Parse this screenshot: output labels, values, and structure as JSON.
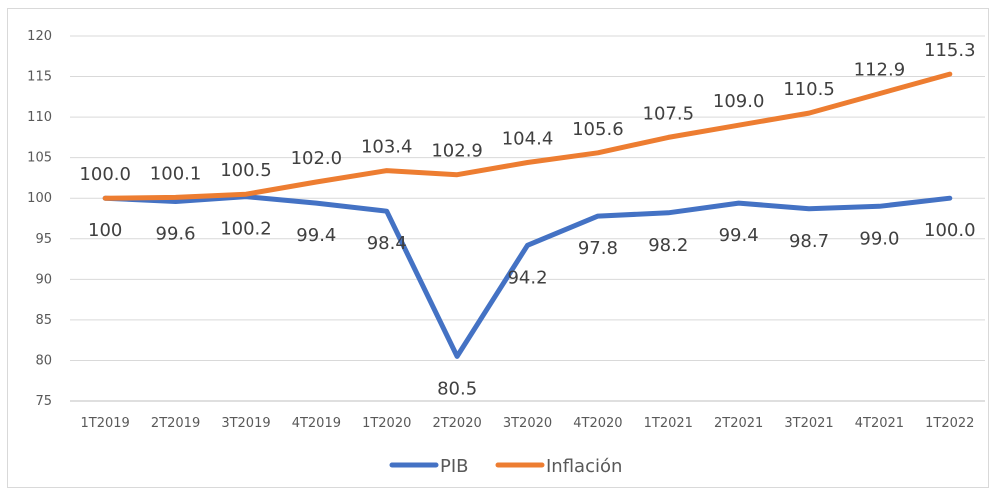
{
  "chart_data": {
    "type": "line",
    "title": "",
    "xlabel": "",
    "ylabel": "",
    "categories": [
      "1T2019",
      "2T2019",
      "3T2019",
      "4T2019",
      "1T2020",
      "2T2020",
      "3T2020",
      "4T2020",
      "1T2021",
      "2T2021",
      "3T2021",
      "4T2021",
      "1T2022"
    ],
    "ylim": [
      75,
      120
    ],
    "yticks": [
      75,
      80,
      85,
      90,
      95,
      100,
      105,
      110,
      115,
      120
    ],
    "grid": true,
    "legend_position": "bottom",
    "series": [
      {
        "name": "PIB",
        "color": "#4472c4",
        "values": [
          100,
          99.6,
          100.2,
          99.4,
          98.4,
          80.5,
          94.2,
          97.8,
          98.2,
          99.4,
          98.7,
          99.0,
          100.0
        ],
        "labels": [
          "100",
          "99.6",
          "100.2",
          "99.4",
          "98.4",
          "80.5",
          "94.2",
          "97.8",
          "98.2",
          "99.4",
          "98.7",
          "99.0",
          "100.0"
        ],
        "label_position": "below"
      },
      {
        "name": "Inflación",
        "color": "#ed7d31",
        "values": [
          100.0,
          100.1,
          100.5,
          102.0,
          103.4,
          102.9,
          104.4,
          105.6,
          107.5,
          109.0,
          110.5,
          112.9,
          115.3
        ],
        "labels": [
          "100.0",
          "100.1",
          "100.5",
          "102.0",
          "103.4",
          "102.9",
          "104.4",
          "105.6",
          "107.5",
          "109.0",
          "110.5",
          "112.9",
          "115.3"
        ],
        "label_position": "above"
      }
    ]
  }
}
